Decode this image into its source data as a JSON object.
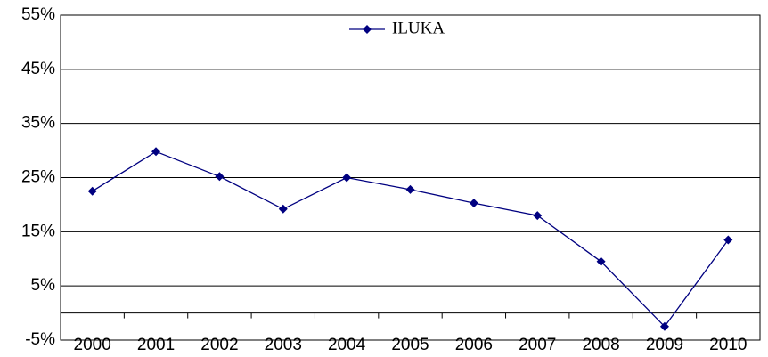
{
  "chart_data": {
    "type": "line",
    "categories": [
      "2000",
      "2001",
      "2002",
      "2003",
      "2004",
      "2005",
      "2006",
      "2007",
      "2008",
      "2009",
      "2010"
    ],
    "series": [
      {
        "name": "ILUKA",
        "color": "#000080",
        "values": [
          22.5,
          29.8,
          25.2,
          19.2,
          25,
          22.8,
          20.3,
          18,
          9.5,
          -2.5,
          13.5
        ]
      }
    ],
    "ylim": [
      -5,
      55
    ],
    "yticks": [
      {
        "value": -5,
        "label": "-5%"
      },
      {
        "value": 5,
        "label": "5%"
      },
      {
        "value": 15,
        "label": "15%"
      },
      {
        "value": 25,
        "label": "25%"
      },
      {
        "value": 35,
        "label": "35%"
      },
      {
        "value": 45,
        "label": "45%"
      },
      {
        "value": 55,
        "label": "55%"
      }
    ],
    "grid": true,
    "legend": "top"
  }
}
